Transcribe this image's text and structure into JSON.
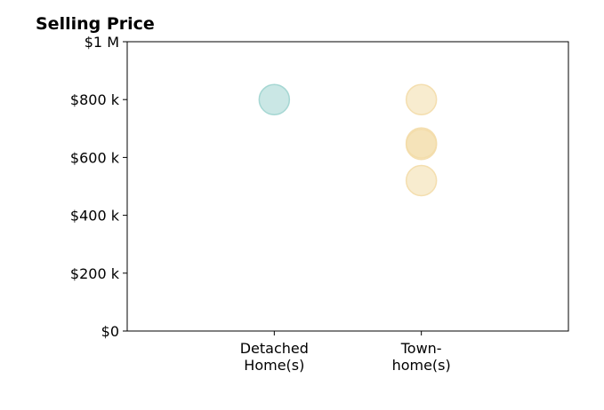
{
  "chart_data": {
    "type": "scatter",
    "title": "Selling Price",
    "xlabel": "",
    "ylabel": "",
    "categories": [
      [
        "Detached",
        "Home(s)"
      ],
      [
        "Town-",
        "home(s)"
      ]
    ],
    "y_tick_values": [
      0,
      200000,
      400000,
      600000,
      800000,
      1000000
    ],
    "y_tick_labels": [
      "$0",
      "$200 k",
      "$400 k",
      "$600 k",
      "$800 k",
      "$1 M"
    ],
    "ylim": [
      0,
      1000000
    ],
    "grid": false,
    "legend": "none",
    "series": [
      {
        "category": "Detached Home(s)",
        "color": "#9fd4cf",
        "points": [
          {
            "x": "Detached Home(s)",
            "y": 800000
          }
        ]
      },
      {
        "category": "Town-home(s)",
        "color": "#f3dca8",
        "points": [
          {
            "x": "Town-home(s)",
            "y": 800000
          },
          {
            "x": "Town-home(s)",
            "y": 650000
          },
          {
            "x": "Town-home(s)",
            "y": 645000
          },
          {
            "x": "Town-home(s)",
            "y": 520000
          }
        ]
      }
    ]
  }
}
